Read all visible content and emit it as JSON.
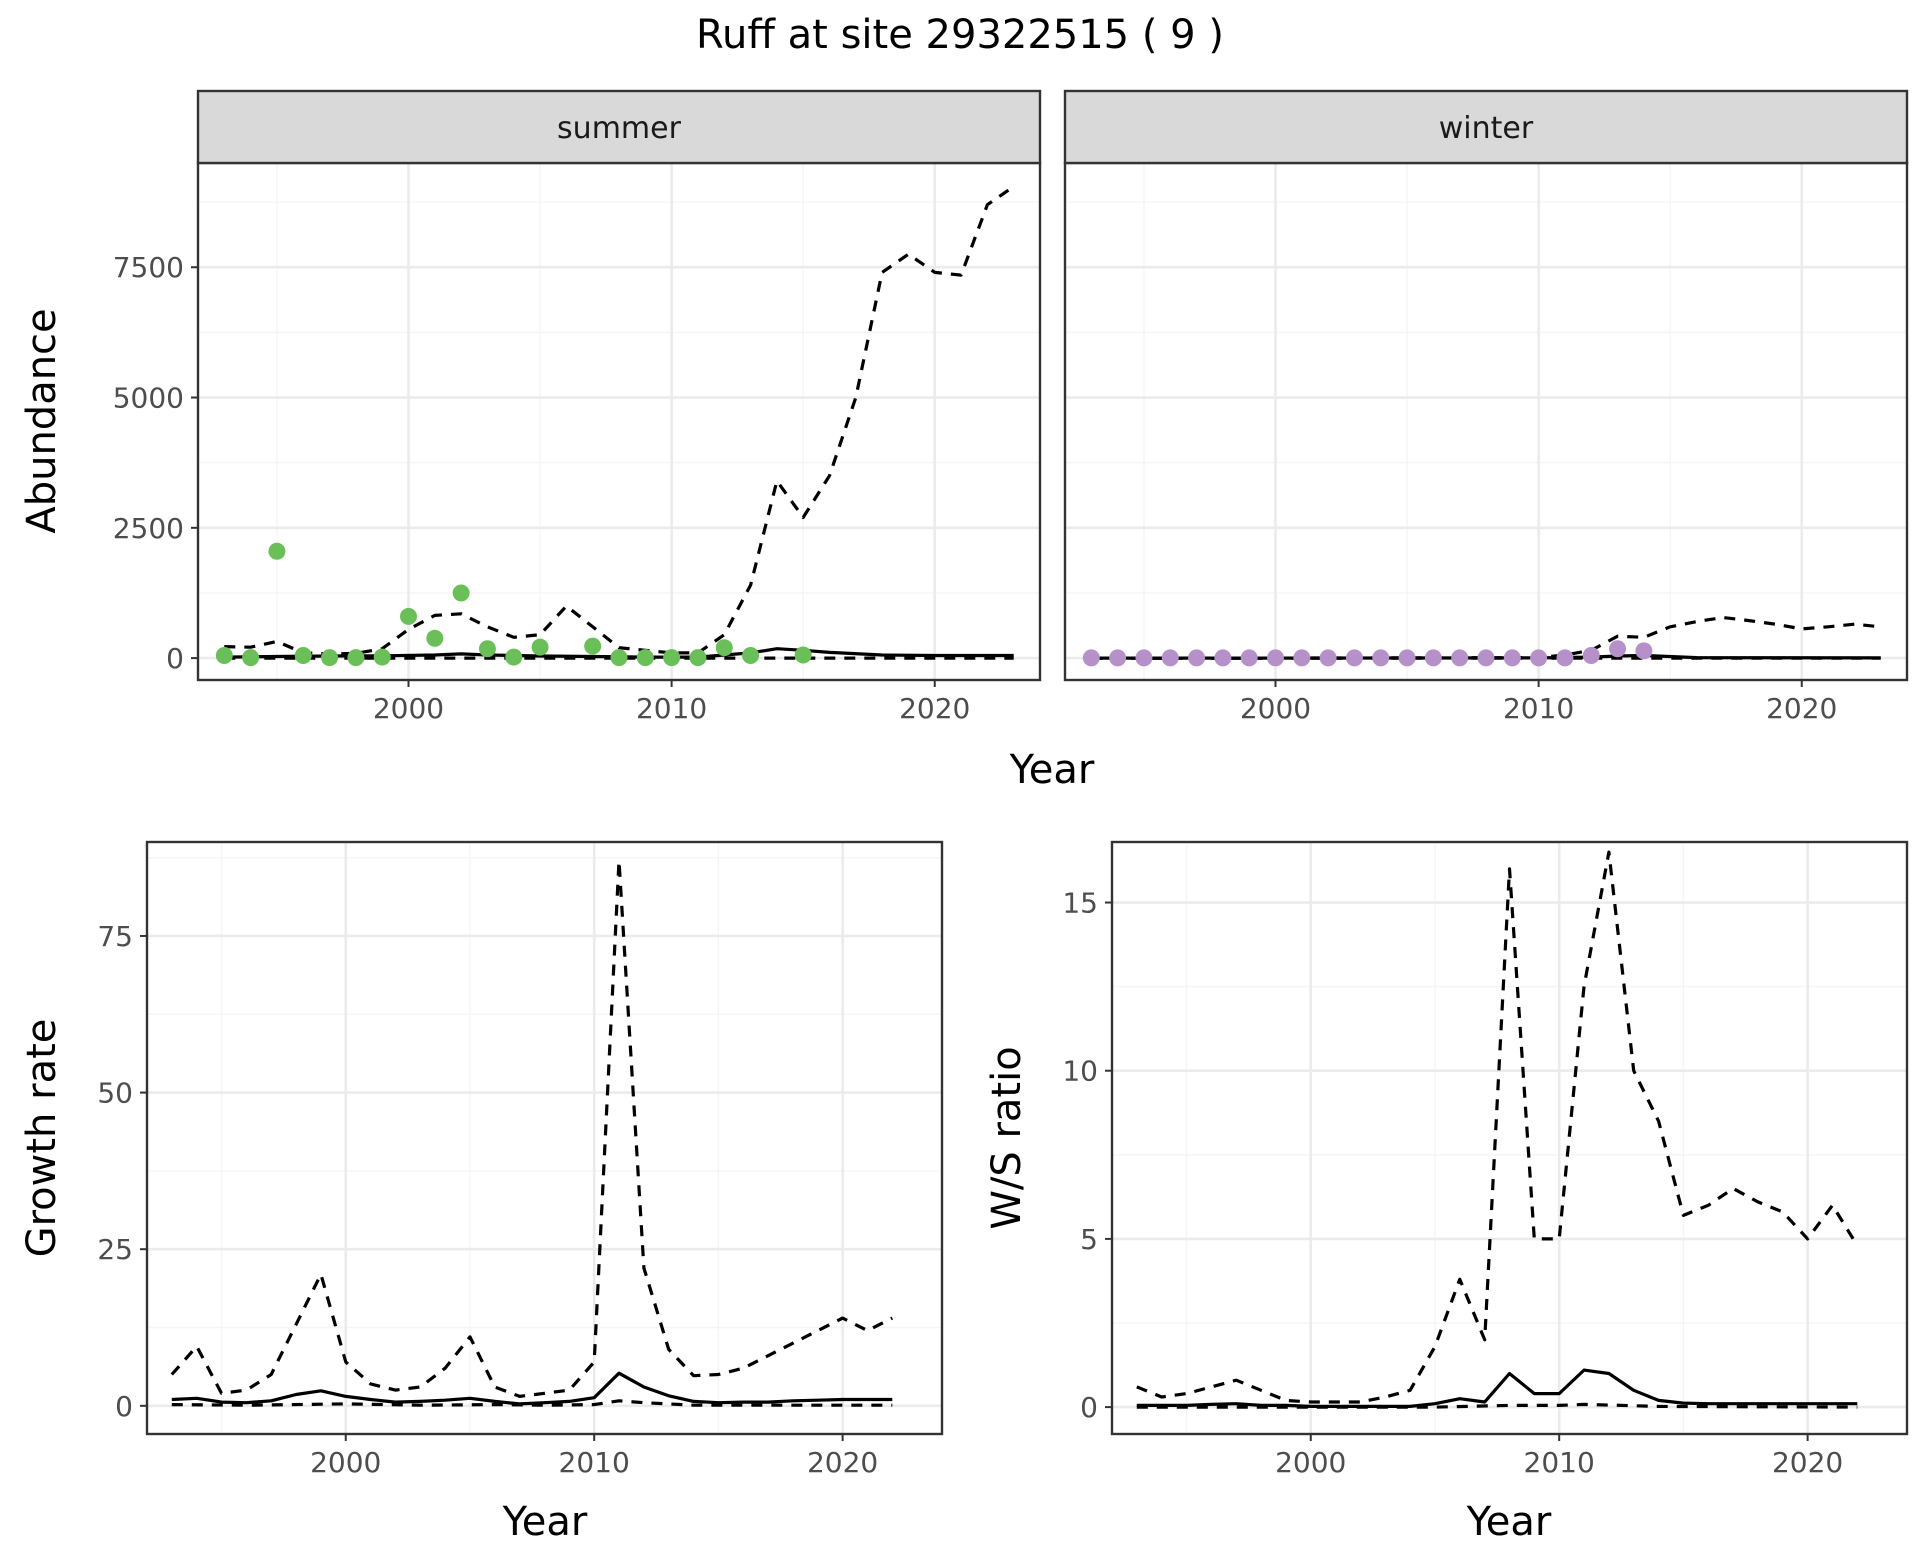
{
  "title": "Ruff at site 29322515 ( 9 )",
  "colors": {
    "summer_points": "#6BBF59",
    "winter_points": "#B690C9",
    "lines": "#000000",
    "strip_fill": "#D9D9D9",
    "panel_border": "#333333",
    "grid_major": "#EBEBEB",
    "grid_minor": "#F5F5F5",
    "axis_text": "#4D4D4D"
  },
  "chart_data": [
    {
      "type": "scatter",
      "panel": "abundance",
      "facets": [
        "summer",
        "winter"
      ],
      "xlabel": "Year",
      "ylabel": "Abundance",
      "xlim": [
        1992,
        2024
      ],
      "ylim": [
        -420,
        9500
      ],
      "x_ticks": [
        2000,
        2010,
        2020
      ],
      "y_ticks": [
        0,
        2500,
        5000,
        7500
      ],
      "y_tick_labels": [
        "0",
        "2500",
        "5000",
        "7500"
      ],
      "grid": true,
      "summer": {
        "points": {
          "x": [
            1993,
            1994,
            1995,
            1996,
            1997,
            1998,
            1999,
            2000,
            2001,
            2002,
            2003,
            2004,
            2005,
            2007,
            2008,
            2009,
            2010,
            2011,
            2012,
            2013,
            2015
          ],
          "y": [
            50,
            10,
            2050,
            50,
            10,
            10,
            20,
            800,
            380,
            1250,
            180,
            20,
            210,
            230,
            10,
            10,
            10,
            10,
            200,
            50,
            60
          ]
        },
        "mean": {
          "x": [
            1993,
            1995,
            1997,
            1999,
            2001,
            2002,
            2003,
            2005,
            2007,
            2009,
            2011,
            2012,
            2013,
            2014,
            2015,
            2016,
            2018,
            2020,
            2023
          ],
          "y": [
            20,
            30,
            40,
            45,
            60,
            80,
            60,
            40,
            30,
            20,
            20,
            60,
            100,
            180,
            150,
            110,
            60,
            50,
            50
          ]
        },
        "upper": {
          "x": [
            1993,
            1994,
            1995,
            1996,
            1997,
            1998,
            1999,
            2000,
            2001,
            2002,
            2003,
            2004,
            2005,
            2006,
            2007,
            2008,
            2009,
            2010,
            2011,
            2012,
            2013,
            2014,
            2015,
            2016,
            2017,
            2018,
            2019,
            2020,
            2021,
            2022,
            2023
          ],
          "y": [
            220,
            210,
            320,
            100,
            80,
            90,
            180,
            550,
            820,
            850,
            600,
            400,
            450,
            1000,
            600,
            200,
            150,
            100,
            100,
            450,
            1400,
            3400,
            2700,
            3500,
            5000,
            7400,
            7750,
            7400,
            7350,
            8700,
            9050
          ]
        },
        "lower": {
          "x": [
            1993,
            1998,
            2003,
            2008,
            2013,
            2018,
            2023
          ],
          "y": [
            0,
            0,
            0,
            0,
            0,
            0,
            0
          ]
        }
      },
      "winter": {
        "points": {
          "x": [
            1993,
            1994,
            1995,
            1996,
            1997,
            1998,
            1999,
            2000,
            2001,
            2002,
            2003,
            2004,
            2005,
            2006,
            2007,
            2008,
            2009,
            2010,
            2011,
            2012,
            2013,
            2014
          ],
          "y": [
            5,
            5,
            5,
            5,
            5,
            5,
            5,
            5,
            5,
            5,
            5,
            5,
            5,
            5,
            5,
            5,
            5,
            5,
            5,
            50,
            180,
            140
          ]
        },
        "mean": {
          "x": [
            1993,
            2000,
            2010,
            2012,
            2013,
            2014,
            2016,
            2023
          ],
          "y": [
            0,
            0,
            5,
            20,
            40,
            50,
            10,
            5
          ]
        },
        "upper": {
          "x": [
            1993,
            2000,
            2010,
            2011,
            2012,
            2013,
            2014,
            2015,
            2016,
            2017,
            2018,
            2019,
            2020,
            2021,
            2022,
            2023
          ],
          "y": [
            0,
            0,
            10,
            60,
            150,
            420,
            400,
            600,
            700,
            780,
            720,
            650,
            560,
            600,
            650,
            600
          ]
        },
        "lower": {
          "x": [
            1993,
            2023
          ],
          "y": [
            0,
            0
          ]
        }
      }
    },
    {
      "type": "line",
      "panel": "growth-rate",
      "xlabel": "Year",
      "ylabel": "Growth rate",
      "xlim": [
        1992,
        2024
      ],
      "ylim": [
        -4.5,
        90
      ],
      "x_ticks": [
        2000,
        2010,
        2020
      ],
      "y_ticks": [
        0,
        25,
        50,
        75
      ],
      "y_tick_labels": [
        "0",
        "25",
        "50",
        "75"
      ],
      "grid": true,
      "series": [
        {
          "style": "solid",
          "x": [
            1993,
            1994,
            1995,
            1996,
            1997,
            1998,
            1999,
            2000,
            2001,
            2002,
            2003,
            2004,
            2005,
            2006,
            2007,
            2008,
            2009,
            2010,
            2011,
            2012,
            2013,
            2014,
            2015,
            2016,
            2017,
            2018,
            2019,
            2020,
            2021,
            2022
          ],
          "y": [
            1.0,
            1.2,
            0.6,
            0.5,
            0.8,
            1.8,
            2.4,
            1.5,
            1.0,
            0.6,
            0.7,
            0.9,
            1.2,
            0.7,
            0.3,
            0.5,
            0.7,
            1.3,
            5.2,
            3.0,
            1.6,
            0.7,
            0.5,
            0.6,
            0.6,
            0.8,
            0.9,
            1.0,
            1.0,
            1.0
          ]
        },
        {
          "style": "dashed",
          "x": [
            1993,
            1994,
            1995,
            1996,
            1997,
            1998,
            1999,
            2000,
            2001,
            2002,
            2003,
            2004,
            2005,
            2006,
            2007,
            2008,
            2009,
            2010,
            2011,
            2012,
            2013,
            2014,
            2015,
            2016,
            2017,
            2018,
            2019,
            2020,
            2021,
            2022
          ],
          "y": [
            5.0,
            9.5,
            2.0,
            2.5,
            5.0,
            13.0,
            21.0,
            7.0,
            3.5,
            2.5,
            3.0,
            6.0,
            11.0,
            3.0,
            1.5,
            2.0,
            2.5,
            7.0,
            87.0,
            22.0,
            9.0,
            4.8,
            5.0,
            6.0,
            8.0,
            10.0,
            12.0,
            14.0,
            12.0,
            14.0
          ]
        },
        {
          "style": "dashed",
          "x": [
            1993,
            1996,
            2000,
            2003,
            2006,
            2008,
            2010,
            2011,
            2012,
            2014,
            2017,
            2020,
            2022
          ],
          "y": [
            0.2,
            0.1,
            0.3,
            0.1,
            0.2,
            0.1,
            0.2,
            0.8,
            0.5,
            0.1,
            0.1,
            0.1,
            0.1
          ]
        }
      ]
    },
    {
      "type": "line",
      "panel": "ws-ratio",
      "xlabel": "Year",
      "ylabel": "W/S ratio",
      "xlim": [
        1992,
        2024
      ],
      "ylim": [
        -0.8,
        16.8
      ],
      "x_ticks": [
        2000,
        2010,
        2020
      ],
      "y_ticks": [
        0,
        5,
        10,
        15
      ],
      "y_tick_labels": [
        "0",
        "5",
        "10",
        "15"
      ],
      "grid": true,
      "series": [
        {
          "style": "solid",
          "x": [
            1993,
            1994,
            1995,
            1996,
            1997,
            1998,
            1999,
            2000,
            2001,
            2002,
            2003,
            2004,
            2005,
            2006,
            2007,
            2008,
            2009,
            2010,
            2011,
            2012,
            2013,
            2014,
            2015,
            2016,
            2017,
            2018,
            2019,
            2020,
            2021,
            2022
          ],
          "y": [
            0.05,
            0.05,
            0.05,
            0.08,
            0.1,
            0.05,
            0.05,
            0.02,
            0.02,
            0.02,
            0.02,
            0.02,
            0.1,
            0.25,
            0.15,
            1.0,
            0.4,
            0.4,
            1.1,
            1.0,
            0.5,
            0.2,
            0.12,
            0.1,
            0.1,
            0.1,
            0.1,
            0.1,
            0.1,
            0.1
          ]
        },
        {
          "style": "dashed",
          "x": [
            1993,
            1994,
            1995,
            1996,
            1997,
            1998,
            1999,
            2000,
            2001,
            2002,
            2003,
            2004,
            2005,
            2006,
            2007,
            2008,
            2009,
            2010,
            2011,
            2012,
            2013,
            2014,
            2015,
            2016,
            2017,
            2018,
            2019,
            2020,
            2021,
            2022
          ],
          "y": [
            0.6,
            0.3,
            0.4,
            0.6,
            0.8,
            0.5,
            0.2,
            0.15,
            0.15,
            0.15,
            0.3,
            0.5,
            1.8,
            3.8,
            2.0,
            16.0,
            5.0,
            5.0,
            12.5,
            16.5,
            10.0,
            8.5,
            5.7,
            6.0,
            6.5,
            6.1,
            5.8,
            5.0,
            6.0,
            4.8
          ]
        },
        {
          "style": "dashed",
          "x": [
            1993,
            2000,
            2005,
            2008,
            2010,
            2011,
            2014,
            2022
          ],
          "y": [
            0.0,
            0.0,
            0.0,
            0.05,
            0.05,
            0.08,
            0.02,
            0.0
          ]
        }
      ]
    }
  ]
}
